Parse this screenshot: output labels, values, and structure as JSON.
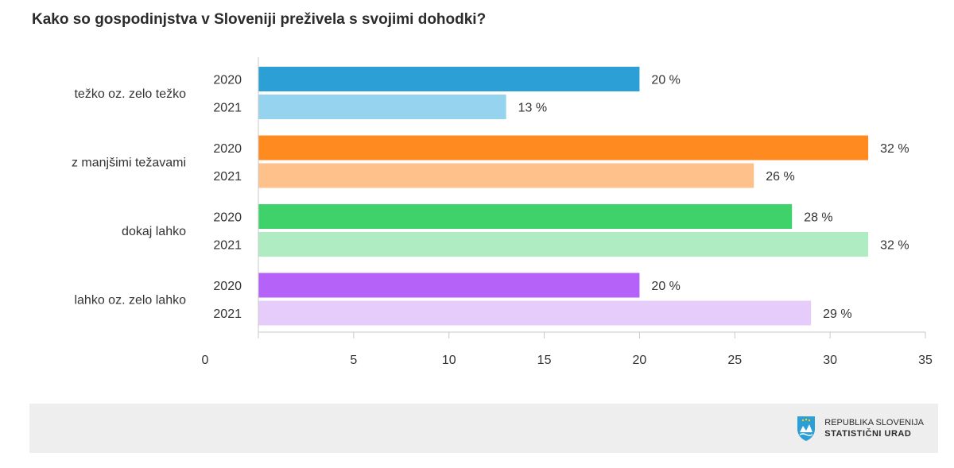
{
  "title": "Kako so gospodinjstva v Sloveniji preživela s svojimi dohodki?",
  "chart_data": {
    "type": "bar",
    "orientation": "horizontal",
    "categories": [
      "težko oz. zelo težko",
      "z manjšimi težavami",
      "dokaj lahko",
      "lahko oz. zelo lahko"
    ],
    "series": [
      {
        "name": "2020",
        "values": [
          20,
          32,
          28,
          20
        ]
      },
      {
        "name": "2021",
        "values": [
          13,
          26,
          32,
          29
        ]
      }
    ],
    "value_suffix": " %",
    "xlim": [
      0,
      35
    ],
    "xticks": [
      0,
      5,
      10,
      15,
      20,
      25,
      30,
      35
    ],
    "colors": {
      "2020": [
        "#2b9fd6",
        "#ff8a1f",
        "#3fd26a",
        "#b462f7"
      ],
      "2021": [
        "#96d3ef",
        "#ffc18c",
        "#b0ecc2",
        "#e6ccfb"
      ]
    }
  },
  "footer": {
    "brand_line1": "Republika Slovenija",
    "brand_line2": "Statistični urad"
  }
}
